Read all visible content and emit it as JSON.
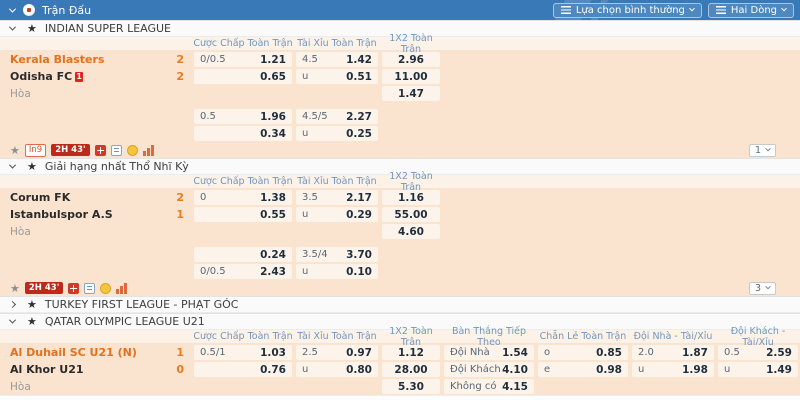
{
  "topbar": {
    "title": "Trận Đấu",
    "view_mode_button": "Lựa chọn bình thường",
    "display_mode_button": "Hai Dòng"
  },
  "icons": {
    "star": "★"
  },
  "column_headers": {
    "handicap": "Cược Chấp Toàn Trận",
    "over_under": "Tài Xỉu Toàn Trận",
    "one_x_two": "1X2 Toàn Trận",
    "next_goal": "Bàn Thắng Tiếp Theo",
    "odd_even": "Chẵn Lẻ Toàn Trận",
    "home_over_under": "Đội Nhà - Tài/Xỉu",
    "away_over_under": "Đội Khách - Tài/Xỉu"
  },
  "leagues": [
    {
      "name": "INDIAN SUPER LEAGUE",
      "match": {
        "home": "Kerala Blasters",
        "home_score": "2",
        "away": "Odisha FC",
        "away_score": "2",
        "away_red_cards": "1",
        "draw": "Hòa",
        "main": {
          "hdp": [
            {
              "line": "0/0.5",
              "odds": "1.21"
            },
            {
              "line": "",
              "odds": "0.65"
            }
          ],
          "ou": [
            {
              "line": "4.5",
              "odds": "1.42"
            },
            {
              "line": "u",
              "odds": "0.51"
            }
          ],
          "x12": [
            "2.96",
            "11.00",
            "1.47"
          ]
        },
        "alt": {
          "hdp": [
            {
              "line": "0.5",
              "odds": "1.96"
            },
            {
              "line": "",
              "odds": "0.34"
            }
          ],
          "ou": [
            {
              "line": "4.5/5",
              "odds": "2.27"
            },
            {
              "line": "u",
              "odds": "0.25"
            }
          ]
        },
        "status": {
          "live": "In9",
          "time": "2H 43'",
          "markets": "1"
        }
      }
    },
    {
      "name": "Giải hạng nhất Thổ Nhĩ Kỳ",
      "match": {
        "home": "Corum FK",
        "home_score": "2",
        "away": "Istanbulspor A.S",
        "away_score": "1",
        "draw": "Hòa",
        "main": {
          "hdp": [
            {
              "line": "0",
              "odds": "1.38"
            },
            {
              "line": "",
              "odds": "0.55"
            }
          ],
          "ou": [
            {
              "line": "3.5",
              "odds": "2.17"
            },
            {
              "line": "u",
              "odds": "0.29"
            }
          ],
          "x12": [
            "1.16",
            "55.00",
            "4.60"
          ]
        },
        "alt": {
          "hdp": [
            {
              "line": "",
              "odds": "0.24"
            },
            {
              "line": "0/0.5",
              "odds": "2.43"
            }
          ],
          "ou": [
            {
              "line": "3.5/4",
              "odds": "3.70"
            },
            {
              "line": "u",
              "odds": "0.10"
            }
          ]
        },
        "status": {
          "time": "2H 43'",
          "markets": "3"
        }
      }
    },
    {
      "name": "TURKEY FIRST LEAGUE - PHẠT GÓC"
    },
    {
      "name": "QATAR OLYMPIC LEAGUE U21",
      "match": {
        "home": "Al Duhail SC U21 (N)",
        "home_score": "1",
        "away": "Al Khor U21",
        "away_score": "0",
        "draw": "Hòa",
        "main": {
          "hdp": [
            {
              "line": "0.5/1",
              "odds": "1.03"
            },
            {
              "line": "",
              "odds": "0.76"
            }
          ],
          "ou": [
            {
              "line": "2.5",
              "odds": "0.97"
            },
            {
              "line": "u",
              "odds": "0.80"
            }
          ],
          "x12": [
            "1.12",
            "28.00",
            "5.30"
          ]
        },
        "extra": {
          "next_goal": [
            {
              "label": "Đội Nhà",
              "odds": "1.54"
            },
            {
              "label": "Đội Khách",
              "odds": "4.10"
            },
            {
              "label": "Không có",
              "odds": "4.15"
            }
          ],
          "odd_even": [
            {
              "line": "o",
              "odds": "0.85"
            },
            {
              "line": "e",
              "odds": "0.98"
            }
          ],
          "home_ou": [
            {
              "line": "2.0",
              "odds": "1.87"
            },
            {
              "line": "u",
              "odds": "1.98"
            }
          ],
          "away_ou": [
            {
              "line": "0.5",
              "odds": "2.59"
            },
            {
              "line": "u",
              "odds": "1.49"
            }
          ]
        }
      }
    }
  ]
}
